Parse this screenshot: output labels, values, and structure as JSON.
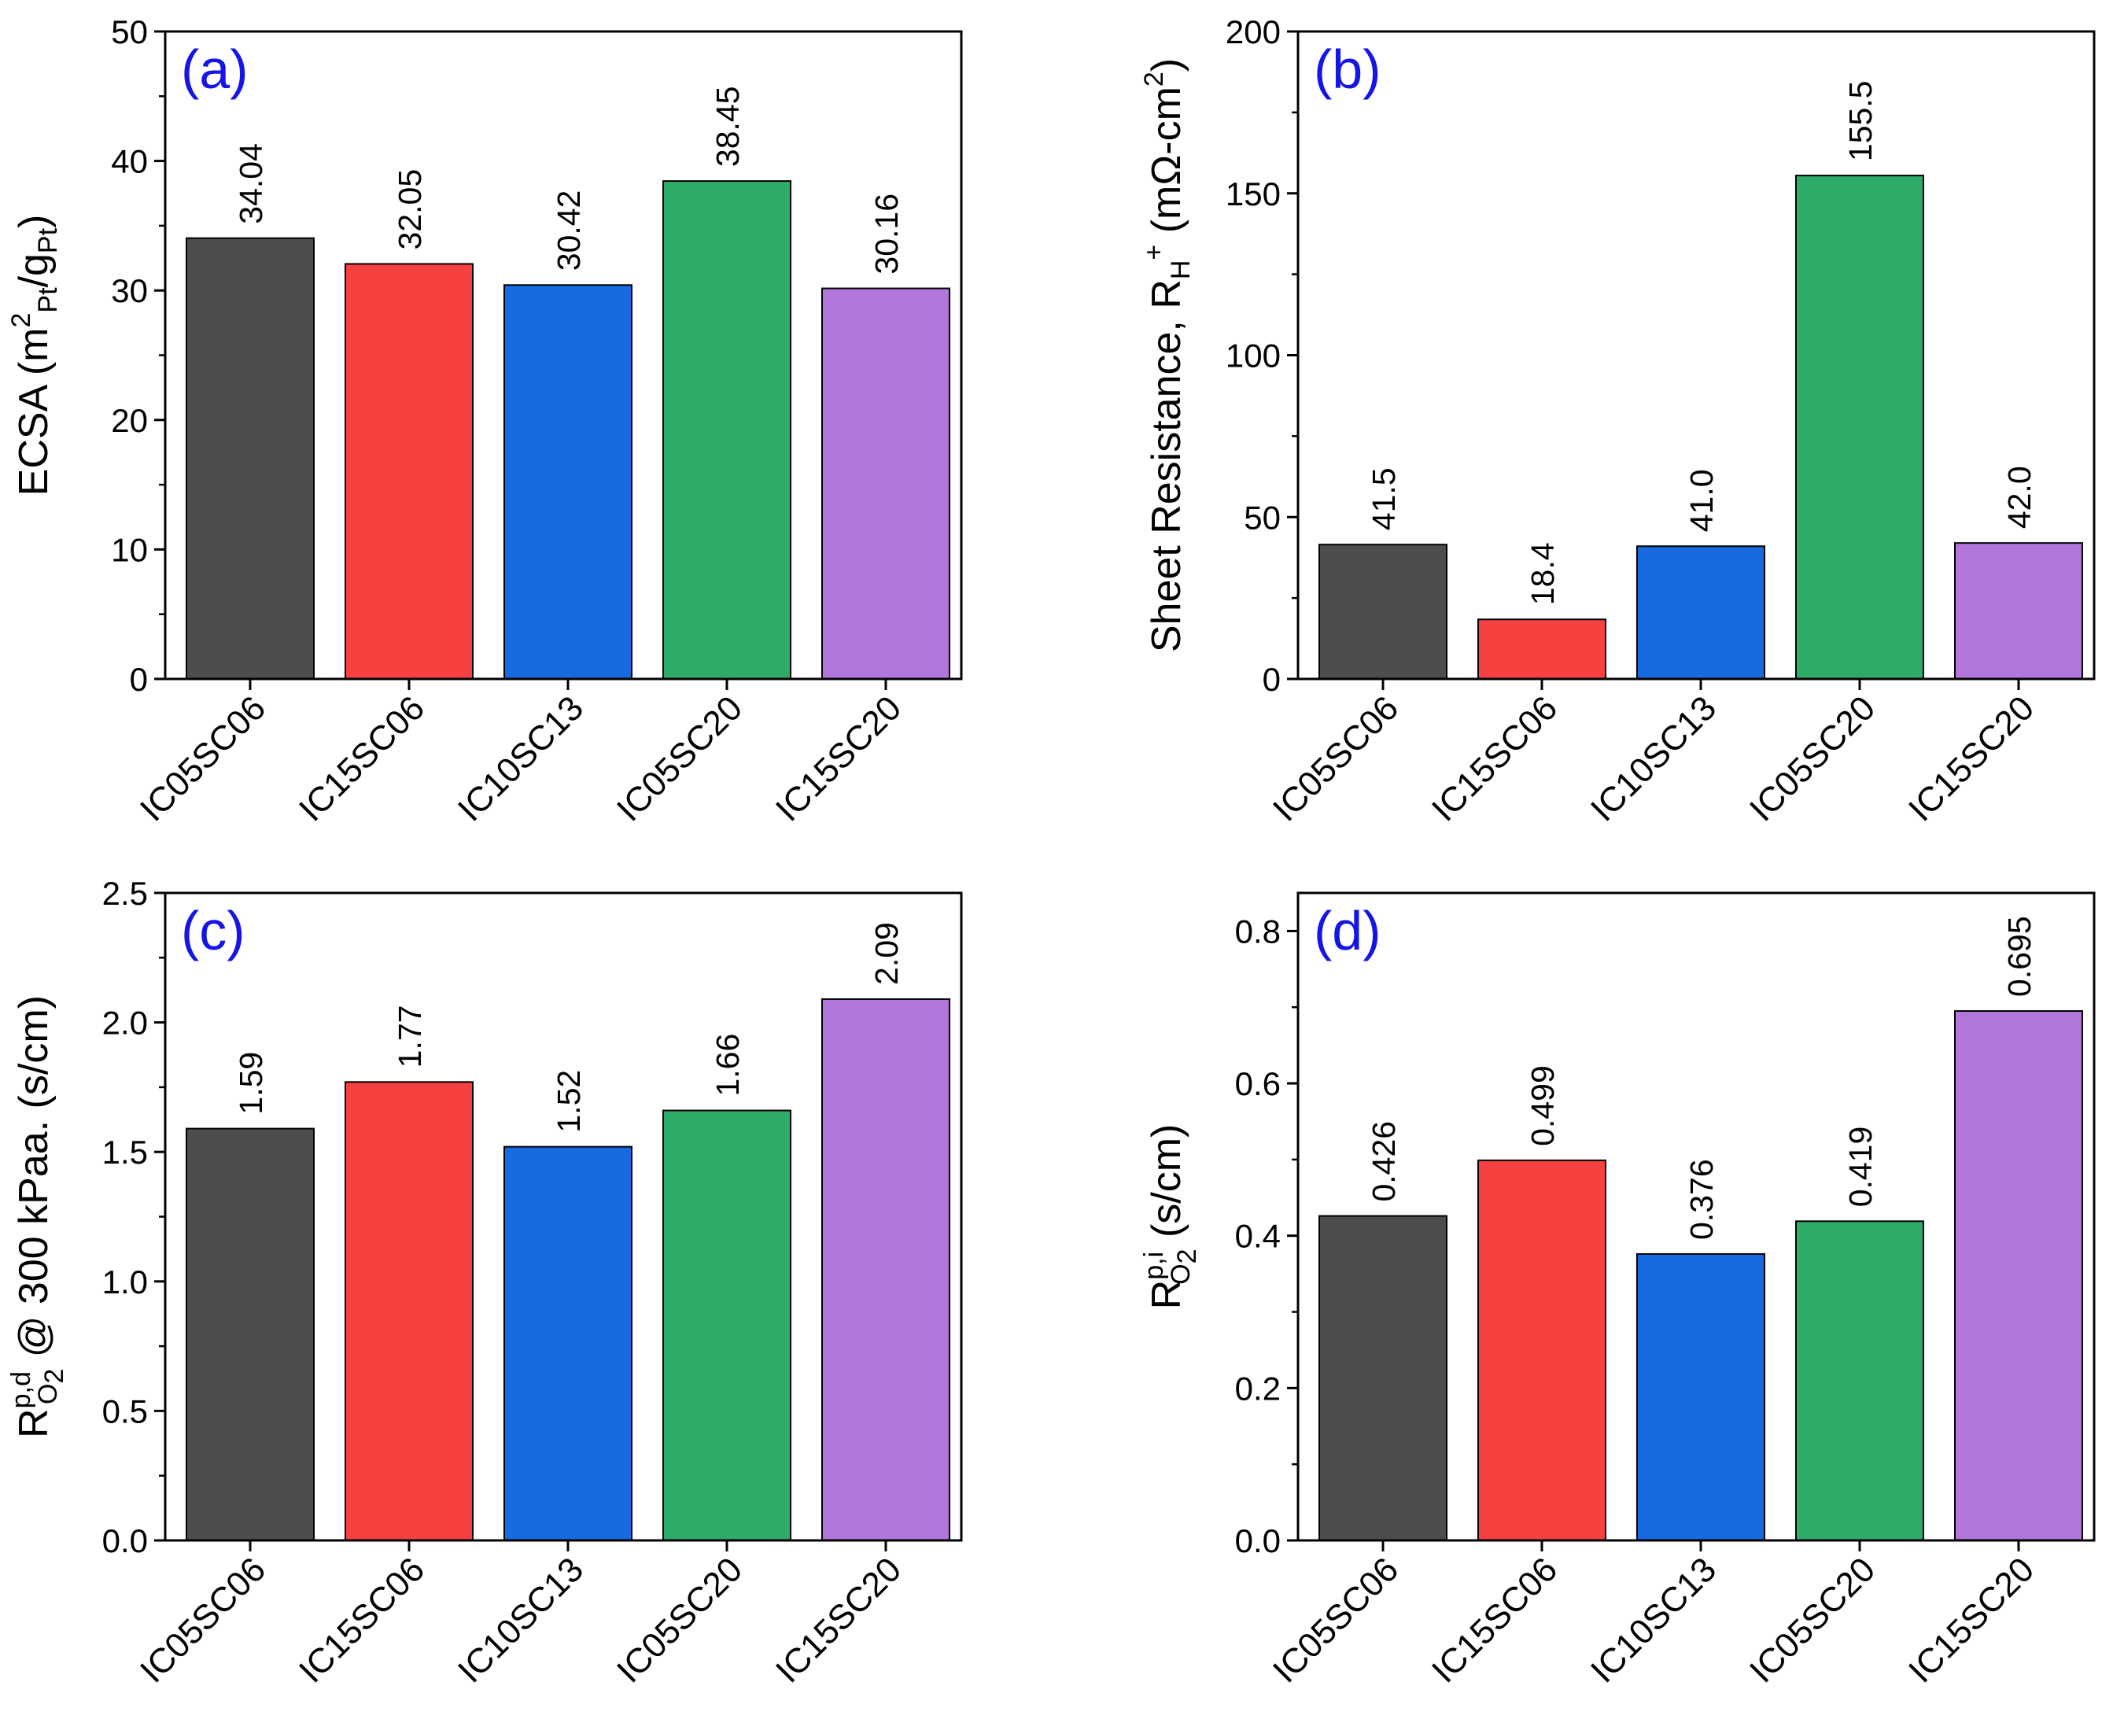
{
  "figure": {
    "colors": [
      "#4d4d4d",
      "#f74141",
      "#186ae0",
      "#2eac6a",
      "#b376dc"
    ],
    "categories": [
      "IC05SC06",
      "IC15SC06",
      "IC10SC13",
      "IC05SC20",
      "IC15SC20"
    ]
  },
  "chart_data": [
    {
      "id": "a",
      "type": "bar",
      "panel_label": "(a)",
      "title": "",
      "xlabel": "",
      "ylabel": "ECSA (m2Pt/gPt)",
      "ylabel_parts": [
        "ECSA (m",
        "2",
        "Pt",
        "/g",
        "Pt",
        ")"
      ],
      "categories": [
        "IC05SC06",
        "IC15SC06",
        "IC10SC13",
        "IC05SC20",
        "IC15SC20"
      ],
      "values": [
        34.04,
        32.05,
        30.42,
        38.45,
        30.16
      ],
      "value_labels": [
        "34.04",
        "32.05",
        "30.42",
        "38.45",
        "30.16"
      ],
      "ylim": [
        0,
        50
      ],
      "yticks": [
        0,
        10,
        20,
        30,
        40,
        50
      ],
      "ytick_labels": [
        "0",
        "10",
        "20",
        "30",
        "40",
        "50"
      ]
    },
    {
      "id": "b",
      "type": "bar",
      "panel_label": "(b)",
      "title": "",
      "xlabel": "",
      "ylabel": "Sheet Resistance, RH+ (mΩ-cm2)",
      "ylabel_parts": [
        "Sheet Resistance, R",
        "H",
        "+",
        " (mΩ-cm",
        "2",
        ")"
      ],
      "categories": [
        "IC05SC06",
        "IC15SC06",
        "IC10SC13",
        "IC05SC20",
        "IC15SC20"
      ],
      "values": [
        41.5,
        18.4,
        41.0,
        155.5,
        42.0
      ],
      "value_labels": [
        "41.5",
        "18.4",
        "41.0",
        "155.5",
        "42.0"
      ],
      "ylim": [
        0,
        200
      ],
      "yticks": [
        0,
        50,
        100,
        150,
        200
      ],
      "ytick_labels": [
        "0",
        "50",
        "100",
        "150",
        "200"
      ]
    },
    {
      "id": "c",
      "type": "bar",
      "panel_label": "(c)",
      "title": "",
      "xlabel": "",
      "ylabel": "Rp,dO2 @ 300 kPaa. (s/cm)",
      "ylabel_parts": [
        "R",
        "p,d",
        "O",
        "2",
        " @ 300 kPaa. (s/cm)"
      ],
      "categories": [
        "IC05SC06",
        "IC15SC06",
        "IC10SC13",
        "IC05SC20",
        "IC15SC20"
      ],
      "values": [
        1.59,
        1.77,
        1.52,
        1.66,
        2.09
      ],
      "value_labels": [
        "1.59",
        "1.77",
        "1.52",
        "1.66",
        "2.09"
      ],
      "ylim": [
        0,
        2.5
      ],
      "yticks": [
        0,
        0.5,
        1.0,
        1.5,
        2.0,
        2.5
      ],
      "ytick_labels": [
        "0.0",
        "0.5",
        "1.0",
        "1.5",
        "2.0",
        "2.5"
      ]
    },
    {
      "id": "d",
      "type": "bar",
      "panel_label": "(d)",
      "title": "",
      "xlabel": "",
      "ylabel": "Rp,iO2 (s/cm)",
      "ylabel_parts": [
        "R",
        "p,i",
        "O",
        "2",
        " (s/cm)"
      ],
      "categories": [
        "IC05SC06",
        "IC15SC06",
        "IC10SC13",
        "IC05SC20",
        "IC15SC20"
      ],
      "values": [
        0.426,
        0.499,
        0.376,
        0.419,
        0.695
      ],
      "value_labels": [
        "0.426",
        "0.499",
        "0.376",
        "0.419",
        "0.695"
      ],
      "ylim": [
        0,
        0.85
      ],
      "yticks": [
        0,
        0.2,
        0.4,
        0.6,
        0.8
      ],
      "ytick_labels": [
        "0.0",
        "0.2",
        "0.4",
        "0.6",
        "0.8"
      ]
    }
  ]
}
